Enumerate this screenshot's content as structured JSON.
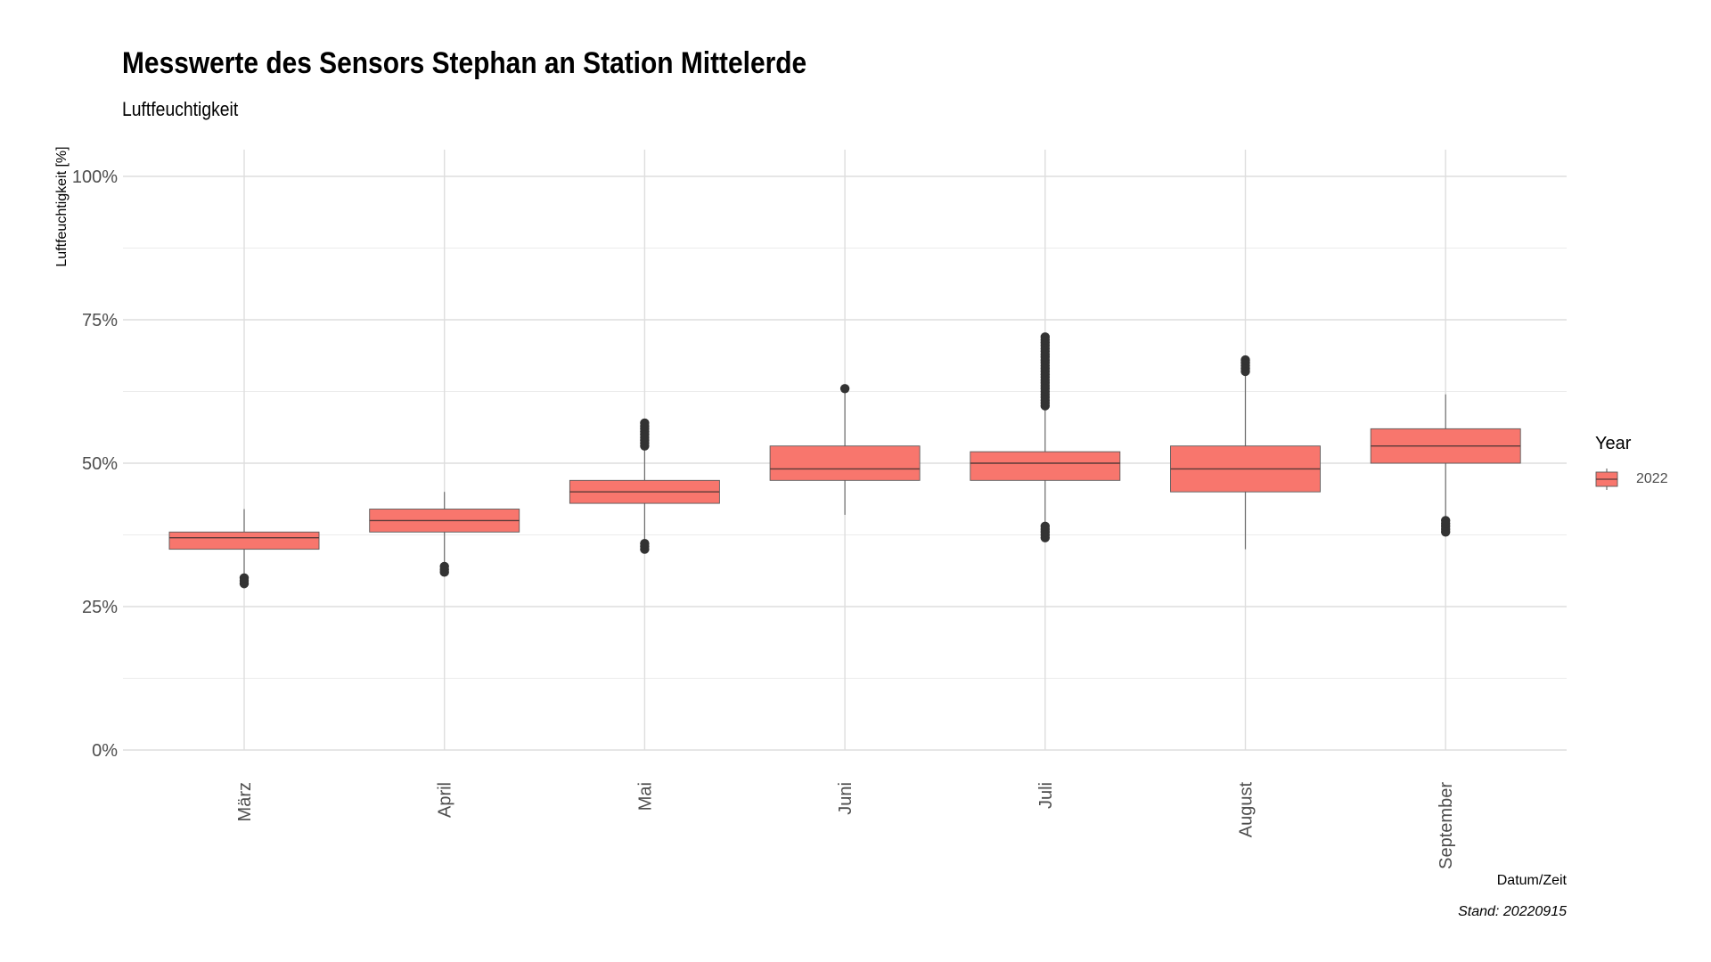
{
  "chart_data": {
    "type": "boxplot",
    "title": "Messwerte des Sensors Stephan an Station Mittelerde",
    "subtitle": "Luftfeuchtigkeit",
    "xlabel": "Datum/Zeit",
    "ylabel": "Luftfeuchtigkeit [%]",
    "caption": "Stand: 20220915",
    "ylim": [
      0,
      100
    ],
    "y_ticks": [
      {
        "value": 0,
        "label": "0%"
      },
      {
        "value": 25,
        "label": "25%"
      },
      {
        "value": 50,
        "label": "50%"
      },
      {
        "value": 75,
        "label": "75%"
      },
      {
        "value": 100,
        "label": "100%"
      }
    ],
    "y_minor_ticks": [
      12.5,
      37.5,
      62.5,
      87.5
    ],
    "categories": [
      "März",
      "April",
      "Mai",
      "Juni",
      "Juli",
      "August",
      "September"
    ],
    "grid": true,
    "legend": {
      "title": "Year",
      "position": "right",
      "entries": [
        {
          "label": "2022",
          "color": "#f8766d"
        }
      ]
    },
    "series": [
      {
        "name": "2022",
        "color": "#f8766d",
        "boxes": [
          {
            "category": "März",
            "whisker_low": 29,
            "q1": 35,
            "median": 37,
            "q3": 38,
            "whisker_high": 42,
            "outliers": [
              29,
              29.5,
              30
            ]
          },
          {
            "category": "April",
            "whisker_low": 31,
            "q1": 38,
            "median": 40,
            "q3": 42,
            "whisker_high": 45,
            "outliers": [
              31,
              31.5,
              32
            ]
          },
          {
            "category": "Mai",
            "whisker_low": 35,
            "q1": 43,
            "median": 45,
            "q3": 47,
            "whisker_high": 57,
            "outliers": [
              35,
              35.5,
              36,
              53,
              53.5,
              54,
              54.5,
              55,
              55.5,
              56,
              56.5,
              57
            ]
          },
          {
            "category": "Juni",
            "whisker_low": 41,
            "q1": 47,
            "median": 49,
            "q3": 53,
            "whisker_high": 63,
            "outliers": [
              63
            ]
          },
          {
            "category": "Juli",
            "whisker_low": 37,
            "q1": 47,
            "median": 50,
            "q3": 52,
            "whisker_high": 60,
            "outliers": [
              37,
              37.5,
              38,
              38.5,
              39,
              60,
              60.5,
              61,
              61.5,
              62,
              62.5,
              63,
              63.5,
              64,
              64.5,
              65,
              65.5,
              66,
              66.5,
              67,
              67.5,
              68,
              68.5,
              69,
              69.5,
              70,
              70.5,
              71,
              71.5,
              72
            ]
          },
          {
            "category": "August",
            "whisker_low": 35,
            "q1": 45,
            "median": 49,
            "q3": 53,
            "whisker_high": 66,
            "outliers": [
              66,
              66.5,
              67,
              67.5,
              68
            ]
          },
          {
            "category": "September",
            "whisker_low": 38,
            "q1": 50,
            "median": 53,
            "q3": 56,
            "whisker_high": 62,
            "outliers": [
              38,
              38.5,
              39,
              39.5,
              40
            ]
          }
        ]
      }
    ]
  }
}
